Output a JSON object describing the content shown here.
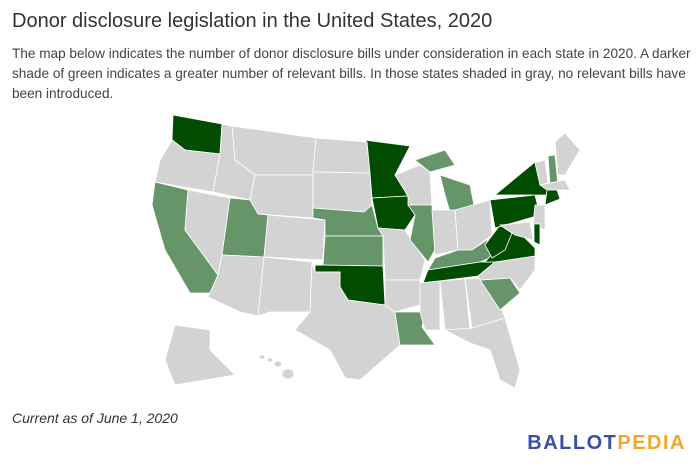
{
  "title": "Donor disclosure legislation in the United States, 2020",
  "description": "The map below indicates the number of donor disclosure bills under consideration in each state in 2020. A darker shade of green indicates a greater number of relevant bills. In those states shaded in gray, no relevant bills have been introduced.",
  "footnote": "Current as of June 1, 2020",
  "logo": {
    "part1": "BALLOT",
    "part2": "PEDIA"
  },
  "colors": {
    "none": "#d3d3d3",
    "some": "#67956a",
    "many": "#004c00",
    "logo_blue": "#3a4ea8",
    "logo_orange": "#f4a62a"
  },
  "map_data": {
    "type": "choropleth",
    "levels": [
      "none",
      "some",
      "many"
    ],
    "states": {
      "WA": "many",
      "MN": "many",
      "IA": "many",
      "OK": "many",
      "TN": "many",
      "WV": "many",
      "VA": "many",
      "PA": "many",
      "NY": "many",
      "CT": "many",
      "DE": "many",
      "CA": "some",
      "UT": "some",
      "NE": "some",
      "KS": "some",
      "IL": "some",
      "MI": "some",
      "KY": "some",
      "NH": "some",
      "SC": "some",
      "LA": "some",
      "OR": "none",
      "NV": "none",
      "ID": "none",
      "MT": "none",
      "WY": "none",
      "CO": "none",
      "AZ": "none",
      "NM": "none",
      "ND": "none",
      "SD": "none",
      "TX": "none",
      "MO": "none",
      "AR": "none",
      "WI": "none",
      "IN": "none",
      "OH": "none",
      "MS": "none",
      "AL": "none",
      "GA": "none",
      "FL": "none",
      "NC": "none",
      "NJ": "none",
      "MD": "none",
      "VT": "none",
      "ME": "none",
      "MA": "none",
      "AK": "none",
      "HI": "none"
    }
  }
}
